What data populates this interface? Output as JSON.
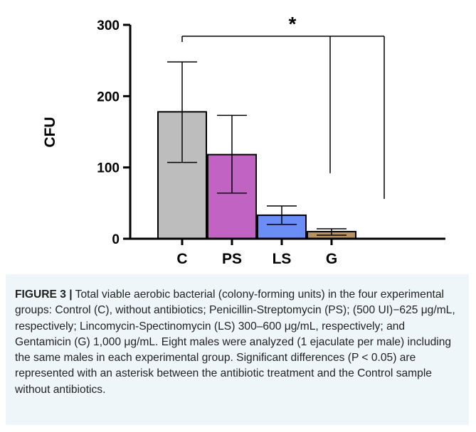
{
  "chart_data": {
    "type": "bar",
    "title": "",
    "xlabel": "",
    "ylabel": "CFU",
    "ylim": [
      0,
      300
    ],
    "yticks": [
      "0",
      "100",
      "200",
      "300"
    ],
    "categories": [
      "C",
      "PS",
      "LS",
      "G"
    ],
    "values": [
      178,
      118,
      33,
      10
    ],
    "errors": [
      [
        107,
        248
      ],
      [
        64,
        173
      ],
      [
        20,
        46
      ],
      [
        5,
        14
      ]
    ],
    "colors": [
      "#bdbdbd",
      "#c163c2",
      "#6b8df6",
      "#b79260"
    ],
    "significance": {
      "marker": "*",
      "reference": "C",
      "compared": [
        "PS",
        "LS",
        "G"
      ]
    },
    "grid": false,
    "legend": "none"
  },
  "caption": {
    "label": "FIGURE 3 |",
    "text": " Total viable aerobic bacterial (colony-forming units) in the four experimental groups: Control (C), without antibiotics; Penicillin-Streptomycin (PS); (500 UI)−625 μg/mL, respectively; Lincomycin-Spectinomycin (LS) 300–600 μg/mL, respectively; and Gentamicin (G) 1,000 μg/mL. Eight males were analyzed (1 ejaculate per male) including the same males in each experimental group. Significant differences (P < 0.05) are represented with an asterisk between the antibiotic treatment and the Control sample without antibiotics."
  }
}
